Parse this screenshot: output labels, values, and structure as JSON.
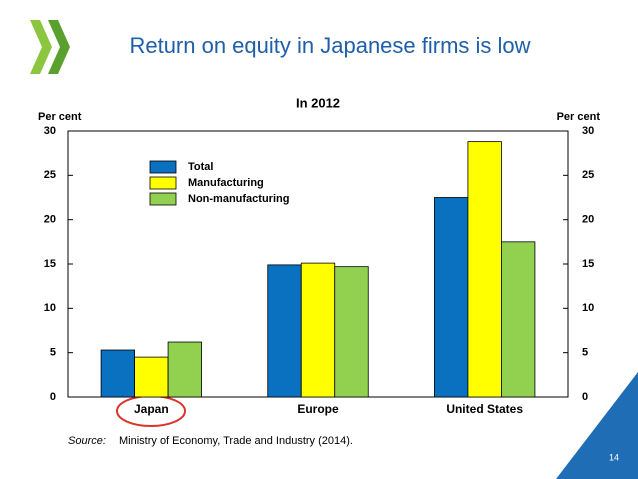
{
  "chart_data": {
    "type": "bar",
    "title": "Return on equity in Japanese firms is low",
    "subtitle": "In 2012",
    "ylabel": "Per cent",
    "y2label": "Per cent",
    "categories": [
      "Japan",
      "Europe",
      "United States"
    ],
    "series": [
      {
        "name": "Total",
        "color": "#0a70c0",
        "values": [
          5.3,
          14.9,
          22.5
        ]
      },
      {
        "name": "Manufacturing",
        "color": "#ffff00",
        "values": [
          4.5,
          15.1,
          28.8
        ]
      },
      {
        "name": "Non-manufacturing",
        "color": "#92d050",
        "values": [
          6.2,
          14.7,
          17.5
        ]
      }
    ],
    "ylim": [
      0,
      30
    ],
    "yticks": [
      0,
      5,
      10,
      15,
      20,
      25,
      30
    ],
    "y2lim": [
      0,
      30
    ],
    "y2ticks": [
      0,
      5,
      10,
      15,
      20,
      25,
      30
    ],
    "grid": false,
    "legend": "upper-left",
    "source_label": "Source:",
    "source": "Ministry of Economy, Trade and Industry (2014).",
    "page_number": 14
  }
}
